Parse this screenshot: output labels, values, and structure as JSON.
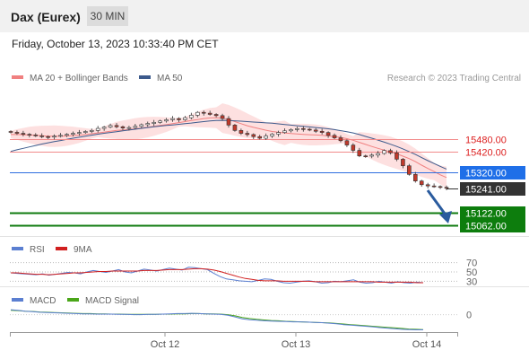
{
  "header": {
    "instrument": "Dax (Eurex)",
    "timeframe": "30 MIN",
    "datetime": "Friday, October 13, 2023 10:33:40 PM CET"
  },
  "colors": {
    "price_line": "#f28a8a",
    "current_line": "#2f6fe0",
    "target_line": "#0f7b0f",
    "ma20": "#f08080",
    "ma50": "#3c5a8c",
    "band_fill": "#fde0e0",
    "candle_bull": "#ffffff",
    "candle_bear": "#c0392b",
    "rsi": "#5b7fd1",
    "rsi_9ma": "#d11f1f",
    "macd": "#5b7fd1",
    "macd_signal": "#4aa619",
    "arrow": "#2a5b9e"
  },
  "chart_data": [
    {
      "type": "candlestick",
      "legend": [
        {
          "label": "MA 20 + Bollinger Bands",
          "color": "#f08080"
        },
        {
          "label": "MA 50",
          "color": "#3c5a8c"
        }
      ],
      "watermark": "Research © 2023 Trading Central",
      "ylim": [
        15030,
        15720
      ],
      "x_ticks": [
        "Oct 12",
        "Oct 13",
        "Oct 14"
      ],
      "levels": [
        {
          "label": "15480.00",
          "value": 15480,
          "kind": "resistance"
        },
        {
          "label": "15420.00",
          "value": 15420,
          "kind": "resistance"
        },
        {
          "label": "15320.00",
          "value": 15320,
          "kind": "pivot"
        },
        {
          "label": "15241.00",
          "value": 15241,
          "kind": "last"
        },
        {
          "label": "15122.00",
          "value": 15122,
          "kind": "target"
        },
        {
          "label": "15062.00",
          "value": 15062,
          "kind": "target"
        }
      ],
      "close_series": [
        15513,
        15508,
        15503,
        15500,
        15496,
        15492,
        15490,
        15494,
        15498,
        15503,
        15508,
        15512,
        15517,
        15522,
        15532,
        15538,
        15546,
        15540,
        15534,
        15536,
        15542,
        15550,
        15556,
        15561,
        15568,
        15574,
        15580,
        15574,
        15584,
        15596,
        15610,
        15606,
        15600,
        15594,
        15580,
        15548,
        15522,
        15508,
        15502,
        15492,
        15484,
        15495,
        15504,
        15512,
        15520,
        15526,
        15531,
        15528,
        15524,
        15518,
        15512,
        15498,
        15486,
        15472,
        15451,
        15425,
        15398,
        15397,
        15402,
        15410,
        15424,
        15413,
        15382,
        15350,
        15308,
        15276,
        15258,
        15252,
        15249,
        15245,
        15241
      ],
      "ma20_series": [
        15502,
        15502,
        15501,
        15500,
        15498,
        15496,
        15494,
        15494,
        15494,
        15495,
        15497,
        15499,
        15502,
        15506,
        15510,
        15514,
        15518,
        15522,
        15524,
        15526,
        15530,
        15534,
        15538,
        15542,
        15546,
        15550,
        15555,
        15560,
        15565,
        15570,
        15575,
        15580,
        15583,
        15584,
        15582,
        15575,
        15565,
        15555,
        15545,
        15537,
        15530,
        15523,
        15517,
        15513,
        15510,
        15507,
        15505,
        15503,
        15501,
        15500,
        15498,
        15495,
        15492,
        15488,
        15482,
        15474,
        15464,
        15454,
        15444,
        15435,
        15426,
        15418,
        15408,
        15397,
        15385,
        15370,
        15353,
        15337,
        15322,
        15306,
        15293
      ],
      "ma50_series": [
        15420,
        15428,
        15435,
        15442,
        15449,
        15456,
        15462,
        15468,
        15473,
        15479,
        15484,
        15489,
        15494,
        15499,
        15504,
        15508,
        15512,
        15516,
        15520,
        15524,
        15528,
        15532,
        15536,
        15540,
        15543,
        15546,
        15549,
        15552,
        15555,
        15558,
        15562,
        15565,
        15568,
        15570,
        15571,
        15570,
        15569,
        15567,
        15565,
        15563,
        15561,
        15559,
        15557,
        15554,
        15551,
        15548,
        15545,
        15542,
        15539,
        15536,
        15533,
        15530,
        15526,
        15521,
        15516,
        15510,
        15502,
        15493,
        15484,
        15475,
        15465,
        15455,
        15444,
        15432,
        15419,
        15405,
        15390,
        15375,
        15361,
        15347,
        15334
      ]
    },
    {
      "type": "line",
      "legend": [
        {
          "label": "RSI",
          "color": "#5b7fd1"
        },
        {
          "label": "9MA",
          "color": "#d11f1f"
        }
      ],
      "ylim": [
        25,
        75
      ],
      "y_ticks": [
        "70",
        "50",
        "30"
      ],
      "series": [
        {
          "name": "RSI",
          "values": [
            48,
            47,
            46,
            45,
            44,
            46,
            43,
            45,
            47,
            49,
            48,
            46,
            50,
            53,
            51,
            49,
            52,
            55,
            50,
            48,
            52,
            56,
            54,
            52,
            55,
            58,
            56,
            54,
            60,
            59,
            57,
            55,
            47,
            40,
            35,
            33,
            31,
            30,
            29,
            32,
            35,
            34,
            30,
            27,
            26,
            28,
            30,
            31,
            29,
            26,
            27,
            30,
            29,
            31,
            33,
            28,
            26,
            27,
            30,
            28,
            26,
            29,
            27,
            26,
            28,
            27
          ]
        },
        {
          "name": "9MA",
          "values": [
            48,
            48,
            47,
            46,
            45,
            45,
            44,
            45,
            46,
            47,
            48,
            48,
            49,
            50,
            51,
            51,
            52,
            52,
            52,
            52,
            52,
            53,
            53,
            53,
            54,
            55,
            55,
            55,
            56,
            57,
            57,
            56,
            54,
            51,
            47,
            43,
            39,
            36,
            34,
            32,
            31,
            31,
            31,
            30,
            30,
            30,
            30,
            30,
            29,
            29,
            29,
            29,
            29,
            29,
            29,
            29,
            29,
            29,
            28,
            28,
            28,
            28,
            28,
            28,
            27,
            27
          ]
        }
      ]
    },
    {
      "type": "line",
      "legend": [
        {
          "label": "MACD",
          "color": "#5b7fd1"
        },
        {
          "label": "MACD Signal",
          "color": "#4aa619"
        }
      ],
      "ylim": [
        -60,
        25
      ],
      "y_ticks": [
        "0"
      ],
      "series": [
        {
          "name": "MACD",
          "values": [
            18,
            16,
            13,
            11,
            9,
            8,
            7,
            6,
            5,
            4,
            3,
            3,
            2,
            2,
            2,
            1,
            1,
            0,
            0,
            1,
            1,
            2,
            3,
            4,
            4,
            5,
            4,
            3,
            2,
            1,
            -2,
            -8,
            -15,
            -18,
            -20,
            -22,
            -23,
            -24,
            -25,
            -26,
            -26,
            -27,
            -28,
            -29,
            -31,
            -33,
            -36,
            -38,
            -40,
            -42,
            -44,
            -47,
            -49,
            -51,
            -53,
            -54,
            -55,
            -55
          ]
        },
        {
          "name": "MACD Signal",
          "values": [
            16,
            15,
            13,
            12,
            10,
            9,
            8,
            7,
            6,
            5,
            4,
            4,
            3,
            3,
            2,
            2,
            1,
            1,
            1,
            1,
            1,
            2,
            2,
            3,
            3,
            4,
            4,
            3,
            3,
            2,
            0,
            -4,
            -10,
            -14,
            -17,
            -19,
            -21,
            -22,
            -24,
            -25,
            -26,
            -27,
            -28,
            -29,
            -30,
            -32,
            -34,
            -36,
            -38,
            -40,
            -42,
            -44,
            -46,
            -48,
            -50,
            -52,
            -53,
            -54
          ]
        }
      ]
    }
  ]
}
